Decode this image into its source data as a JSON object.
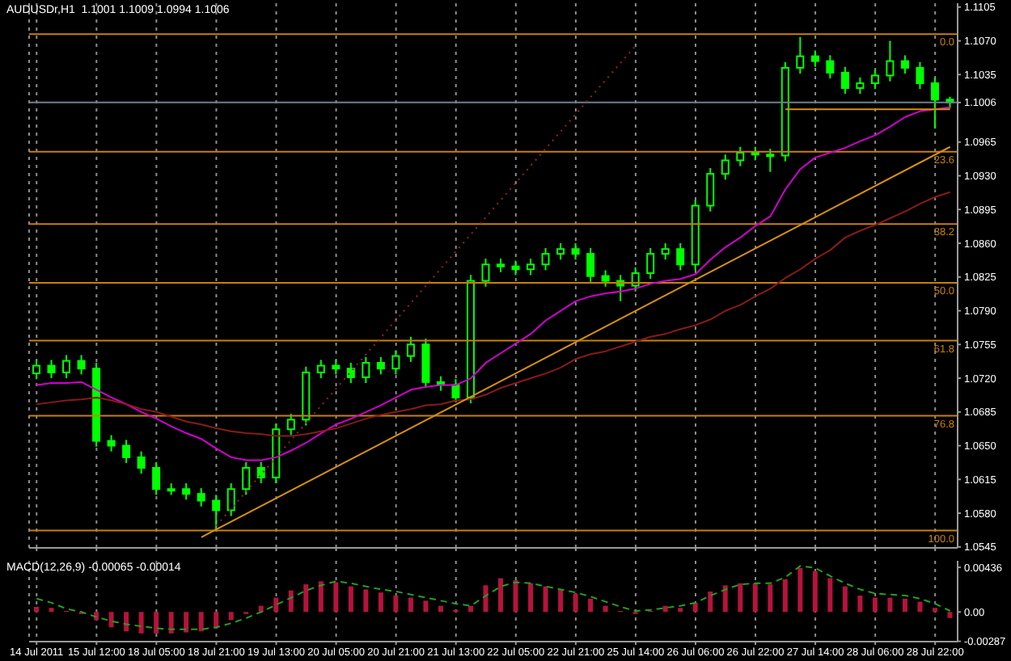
{
  "chart_data": [
    {
      "type": "candlestick",
      "title": "AUDUSDr,H1  1.1001 1.1009 1.0994 1.1006",
      "color": "#00ff00",
      "categories": [
        null,
        null,
        null,
        null,
        null,
        null,
        null,
        null,
        null,
        null,
        null,
        null,
        null,
        null,
        null,
        null,
        null,
        null,
        null,
        null,
        null,
        null,
        null,
        null,
        null,
        null,
        null,
        null,
        null,
        null,
        null,
        null,
        null,
        null,
        null,
        null,
        null,
        null,
        null,
        null,
        null,
        null,
        null,
        null,
        null,
        null,
        null,
        null,
        null,
        null,
        null,
        null,
        null,
        null,
        null,
        null,
        null,
        null,
        null,
        null,
        null,
        null
      ],
      "ohlc": [
        [
          1.0725,
          1.0739,
          1.0719,
          1.0733
        ],
        [
          1.0733,
          1.0739,
          1.072,
          1.0726
        ],
        [
          1.0726,
          1.0744,
          1.072,
          1.0738
        ],
        [
          1.0738,
          1.0744,
          1.0724,
          1.073
        ],
        [
          1.073,
          1.0736,
          1.0649,
          1.0655
        ],
        [
          1.0655,
          1.0661,
          1.0644,
          1.065
        ],
        [
          1.065,
          1.0656,
          1.0632,
          1.0638
        ],
        [
          1.0638,
          1.0644,
          1.0621,
          1.0627
        ],
        [
          1.0627,
          1.0633,
          1.0599,
          1.0605
        ],
        [
          1.0605,
          1.0611,
          1.0599,
          1.0605
        ],
        [
          1.0605,
          1.0611,
          1.0594,
          1.06
        ],
        [
          1.06,
          1.0606,
          1.0587,
          1.0593
        ],
        [
          1.0593,
          1.0599,
          1.0562,
          1.0583
        ],
        [
          1.0583,
          1.0611,
          1.0577,
          1.0605
        ],
        [
          1.0605,
          1.0633,
          1.0599,
          1.0627
        ],
        [
          1.0627,
          1.0633,
          1.0611,
          1.0617
        ],
        [
          1.0617,
          1.0673,
          1.0611,
          1.0667
        ],
        [
          1.0667,
          1.0683,
          1.0661,
          1.0677
        ],
        [
          1.0677,
          1.0732,
          1.0671,
          1.0726
        ],
        [
          1.0726,
          1.0739,
          1.072,
          1.0733
        ],
        [
          1.0733,
          1.0739,
          1.0724,
          1.073
        ],
        [
          1.073,
          1.0736,
          1.0715,
          1.0721
        ],
        [
          1.0721,
          1.0742,
          1.0715,
          1.0736
        ],
        [
          1.0736,
          1.0742,
          1.0724,
          1.073
        ],
        [
          1.073,
          1.0749,
          1.0724,
          1.0743
        ],
        [
          1.0743,
          1.0763,
          1.0737,
          1.0755
        ],
        [
          1.0755,
          1.0761,
          1.071,
          1.0716
        ],
        [
          1.0716,
          1.0722,
          1.0707,
          1.0713
        ],
        [
          1.0713,
          1.0719,
          1.0697,
          1.07
        ],
        [
          1.07,
          1.0827,
          1.0694,
          1.0821
        ],
        [
          1.0821,
          1.0844,
          1.0815,
          1.0838
        ],
        [
          1.0838,
          1.0844,
          1.083,
          1.0836
        ],
        [
          1.0836,
          1.0842,
          1.0827,
          1.0833
        ],
        [
          1.0833,
          1.0844,
          1.0827,
          1.0838
        ],
        [
          1.0838,
          1.0855,
          1.0832,
          1.0849
        ],
        [
          1.0849,
          1.086,
          1.0843,
          1.0854
        ],
        [
          1.0854,
          1.086,
          1.0843,
          1.0849
        ],
        [
          1.0849,
          1.0855,
          1.082,
          1.0826
        ],
        [
          1.0826,
          1.0832,
          1.0815,
          1.0821
        ],
        [
          1.0821,
          1.0827,
          1.08,
          1.0816
        ],
        [
          1.0816,
          1.0835,
          1.081,
          1.0829
        ],
        [
          1.0829,
          1.0855,
          1.0823,
          1.0849
        ],
        [
          1.0849,
          1.086,
          1.0843,
          1.0854
        ],
        [
          1.0854,
          1.086,
          1.0832,
          1.0838
        ],
        [
          1.0838,
          1.0905,
          1.0832,
          1.0899
        ],
        [
          1.0899,
          1.0938,
          1.0893,
          1.0932
        ],
        [
          1.0932,
          1.0952,
          1.0926,
          1.0946
        ],
        [
          1.0946,
          1.096,
          1.094,
          1.0954
        ],
        [
          1.0954,
          1.096,
          1.0946,
          1.0952
        ],
        [
          1.0952,
          1.0958,
          1.0934,
          1.0951
        ],
        [
          1.0951,
          1.1048,
          1.0945,
          1.1042
        ],
        [
          1.1042,
          1.1074,
          1.1036,
          1.1054
        ],
        [
          1.1054,
          1.106,
          1.1043,
          1.1049
        ],
        [
          1.1049,
          1.1055,
          1.1031,
          1.1037
        ],
        [
          1.1037,
          1.1043,
          1.1015,
          1.1021
        ],
        [
          1.1021,
          1.1032,
          1.1015,
          1.1026
        ],
        [
          1.1026,
          1.104,
          1.102,
          1.1034
        ],
        [
          1.1034,
          1.107,
          1.1028,
          1.1049
        ],
        [
          1.1049,
          1.1055,
          1.1036,
          1.1042
        ],
        [
          1.1042,
          1.1048,
          1.102,
          1.1026
        ],
        [
          1.1026,
          1.1032,
          1.0979,
          1.1009
        ],
        [
          1.1009,
          1.1012,
          1.1,
          1.1006
        ]
      ],
      "series": [
        {
          "type": "line",
          "color": "#d000d0",
          "values": [
            1.0713,
            1.0715,
            1.0715,
            1.0716,
            1.0708,
            1.07,
            1.0693,
            1.0685,
            1.0678,
            1.067,
            1.0663,
            1.0657,
            1.0647,
            1.0638,
            1.0635,
            1.0635,
            1.0638,
            1.0645,
            1.0653,
            1.0663,
            1.0672,
            1.0678,
            1.0685,
            1.0692,
            1.07,
            1.0708,
            1.0711,
            1.0713,
            1.0713,
            1.072,
            1.0736,
            1.0746,
            1.0756,
            1.0766,
            1.078,
            1.079,
            1.08,
            1.0805,
            1.0808,
            1.081,
            1.0813,
            1.0818,
            1.0821,
            1.0823,
            1.0828,
            1.0843,
            1.0856,
            1.0866,
            1.0878,
            1.0888,
            1.0916,
            1.0937,
            1.0949,
            1.0954,
            1.0959,
            1.0966,
            1.0972,
            1.0981,
            1.0991,
            1.0997,
            1.0999,
            1.1001
          ]
        },
        {
          "type": "line",
          "color": "#8a1a1a",
          "values": [
            1.0693,
            1.0695,
            1.0697,
            1.0698,
            1.07,
            1.0697,
            1.0693,
            1.0688,
            1.0685,
            1.068,
            1.0675,
            1.0672,
            1.0668,
            1.0665,
            1.0663,
            1.0662,
            1.066,
            1.066,
            1.0662,
            1.0665,
            1.0668,
            1.0673,
            1.0678,
            1.0682,
            1.0685,
            1.0688,
            1.0692,
            1.0693,
            1.0697,
            1.0698,
            1.0703,
            1.071,
            1.0715,
            1.072,
            1.0725,
            1.0731,
            1.074,
            1.0745,
            1.0748,
            1.0753,
            1.0758,
            1.0763,
            1.0766,
            1.0771,
            1.0775,
            1.0781,
            1.079,
            1.0796,
            1.0805,
            1.0813,
            1.0824,
            1.0833,
            1.0844,
            1.0853,
            1.0866,
            1.0873,
            1.0879,
            1.0886,
            1.0893,
            1.0901,
            1.0908,
            1.0913
          ]
        },
        {
          "type": "line",
          "color": "#d8900f",
          "values": [
            null,
            null,
            null,
            null,
            null,
            null,
            null,
            null,
            null,
            null,
            null,
            1.0555,
            null,
            null,
            null,
            null,
            null,
            null,
            null,
            null,
            null,
            null,
            null,
            null,
            null,
            null,
            null,
            null,
            null,
            null,
            null,
            null,
            null,
            null,
            null,
            null,
            null,
            null,
            null,
            null,
            null,
            null,
            null,
            null,
            null,
            null,
            null,
            null,
            null,
            null,
            null,
            null,
            null,
            null,
            null,
            null,
            null,
            null,
            null,
            null,
            null,
            1.096
          ]
        },
        {
          "type": "line",
          "color": "#9a2020",
          "line_style": "dotted",
          "values": [
            null,
            null,
            null,
            null,
            null,
            null,
            null,
            null,
            null,
            null,
            null,
            null,
            1.0567,
            null,
            null,
            null,
            null,
            null,
            null,
            null,
            null,
            null,
            null,
            null,
            null,
            null,
            null,
            null,
            null,
            null,
            null,
            null,
            null,
            null,
            null,
            null,
            null,
            null,
            null,
            null,
            1.1065,
            null,
            null,
            null,
            null,
            null,
            null,
            null,
            null,
            null,
            null,
            null,
            null,
            null,
            null,
            null,
            null,
            null,
            null,
            null,
            null,
            null
          ]
        },
        {
          "type": "line",
          "color": "#d8900f",
          "values": [
            null,
            null,
            null,
            null,
            null,
            null,
            null,
            null,
            null,
            null,
            null,
            null,
            null,
            null,
            null,
            null,
            null,
            null,
            null,
            null,
            null,
            null,
            null,
            null,
            null,
            null,
            null,
            null,
            null,
            null,
            null,
            null,
            null,
            null,
            null,
            null,
            null,
            null,
            null,
            null,
            null,
            null,
            null,
            null,
            null,
            null,
            null,
            null,
            null,
            null,
            1.0999,
            null,
            null,
            null,
            null,
            null,
            null,
            null,
            null,
            null,
            null,
            1.0999
          ]
        }
      ],
      "ylim": [
        1.0544,
        1.1109
      ],
      "yticks": [
        {
          "value": 1.0545,
          "label": "1.0545"
        },
        {
          "value": 1.058,
          "label": "1.0580"
        },
        {
          "value": 1.0615,
          "label": "1.0615"
        },
        {
          "value": 1.065,
          "label": "1.0650"
        },
        {
          "value": 1.0685,
          "label": "1.0685"
        },
        {
          "value": 1.072,
          "label": "1.0720"
        },
        {
          "value": 1.0755,
          "label": "1.0755"
        },
        {
          "value": 1.079,
          "label": "1.0790"
        },
        {
          "value": 1.0825,
          "label": "1.0825"
        },
        {
          "value": 1.086,
          "label": "1.0860"
        },
        {
          "value": 1.0895,
          "label": "1.0895"
        },
        {
          "value": 1.093,
          "label": "1.0930"
        },
        {
          "value": 1.0965,
          "label": "1.0965"
        },
        {
          "value": 1.1006,
          "label": "1.1006"
        },
        {
          "value": 1.1035,
          "label": "1.1035"
        },
        {
          "value": 1.107,
          "label": "1.1070"
        },
        {
          "value": 1.1105,
          "label": "1.1105"
        }
      ],
      "ref_lines": [
        {
          "axis": "y",
          "value": 1.1006,
          "color": "#6f7f8f"
        },
        {
          "axis": "y",
          "value": 1.1077,
          "color": "#c8800a"
        },
        {
          "axis": "y",
          "value": 1.0955,
          "color": "#c8800a"
        },
        {
          "axis": "y",
          "value": 1.088,
          "color": "#c8800a"
        },
        {
          "axis": "y",
          "value": 1.0819,
          "color": "#c8800a"
        },
        {
          "axis": "y",
          "value": 1.0759,
          "color": "#c8800a"
        },
        {
          "axis": "y",
          "value": 1.0681,
          "color": "#c8800a"
        },
        {
          "axis": "y",
          "value": 1.0562,
          "color": "#c8800a"
        }
      ],
      "annotations": [
        {
          "text": "0.0",
          "y": 1.1077
        },
        {
          "text": "23.6",
          "y": 1.0955
        },
        {
          "text": "38.2",
          "y": 1.088
        },
        {
          "text": "50.0",
          "y": 1.0819
        },
        {
          "text": "61.8",
          "y": 1.0759
        },
        {
          "text": "76.8",
          "y": 1.0681
        },
        {
          "text": "100.0",
          "y": 1.0562
        }
      ],
      "grid": "x",
      "tick_labels": "y"
    },
    {
      "type": "bar",
      "title": "MACD(12,26,9) -0.00065 -0.00014",
      "color": "#b4143c",
      "categories": [
        "14 Jul 2011",
        null,
        null,
        null,
        "15 Jul 12:00",
        null,
        null,
        null,
        "18 Jul 05:00",
        null,
        null,
        null,
        "18 Jul 21:00",
        null,
        null,
        null,
        "19 Jul 13:00",
        null,
        null,
        null,
        "20 Jul 05:00",
        null,
        null,
        null,
        "20 Jul 21:00",
        null,
        null,
        null,
        "21 Jul 13:00",
        null,
        null,
        null,
        "22 Jul 05:00",
        null,
        null,
        null,
        "22 Jul 21:00",
        null,
        null,
        null,
        "25 Jul 14:00",
        null,
        null,
        null,
        "26 Jul 06:00",
        null,
        null,
        null,
        "26 Jul 22:00",
        null,
        null,
        null,
        "27 Jul 14:00",
        null,
        null,
        null,
        "28 Jul 06:00",
        null,
        null,
        null,
        "28 Jul 22:00",
        null
      ],
      "values": [
        0.0005,
        0.0004,
        0.0001,
        -0.0002,
        -0.0008,
        -0.0015,
        -0.0019,
        -0.0021,
        -0.0021,
        -0.0021,
        -0.002,
        -0.0019,
        -0.0016,
        -0.0008,
        -0.0002,
        0.0006,
        0.0014,
        0.0021,
        0.0027,
        0.003,
        0.0029,
        0.0025,
        0.0022,
        0.0019,
        0.0016,
        0.0014,
        0.0011,
        0.0006,
        0.0002,
        0.0006,
        0.0026,
        0.0033,
        0.0031,
        0.0028,
        0.0025,
        0.0022,
        0.0018,
        0.0013,
        0.0006,
        0.0001,
        -0.0002,
        0.0001,
        0.0006,
        0.0004,
        0.0009,
        0.002,
        0.0026,
        0.0028,
        0.0028,
        0.0027,
        0.0032,
        0.0043,
        0.004,
        0.0033,
        0.0025,
        0.0016,
        0.0014,
        0.0014,
        0.0013,
        0.001,
        0.0004,
        -0.0006
      ],
      "series": [
        {
          "type": "line",
          "color": "#22a022",
          "line_style": "dashed",
          "values": [
            0.0013,
            0.0009,
            0.0003,
            0.0,
            -0.0005,
            -0.0009,
            -0.0012,
            -0.0014,
            -0.0016,
            -0.0017,
            -0.0017,
            -0.0017,
            -0.0015,
            -0.0011,
            -0.0006,
            0.0,
            0.0007,
            0.0014,
            0.0021,
            0.0026,
            0.003,
            0.0028,
            0.0025,
            0.0022,
            0.002,
            0.0017,
            0.0014,
            0.0011,
            0.0008,
            0.0006,
            0.0016,
            0.0025,
            0.0029,
            0.0028,
            0.0025,
            0.0022,
            0.0019,
            0.0015,
            0.001,
            0.0005,
            0.0001,
            0.0002,
            0.0004,
            0.0006,
            0.0009,
            0.0016,
            0.0022,
            0.0027,
            0.0028,
            0.0028,
            0.0034,
            0.0045,
            0.0043,
            0.0035,
            0.0028,
            0.0022,
            0.0018,
            0.0017,
            0.0016,
            0.0013,
            0.0008,
            0.0001
          ]
        }
      ],
      "ylim": [
        -0.0029,
        0.005
      ],
      "yticks": [
        -0.00287,
        {
          "value": 0,
          "label": "0.00"
        },
        0.00436
      ],
      "grid": "x"
    }
  ]
}
